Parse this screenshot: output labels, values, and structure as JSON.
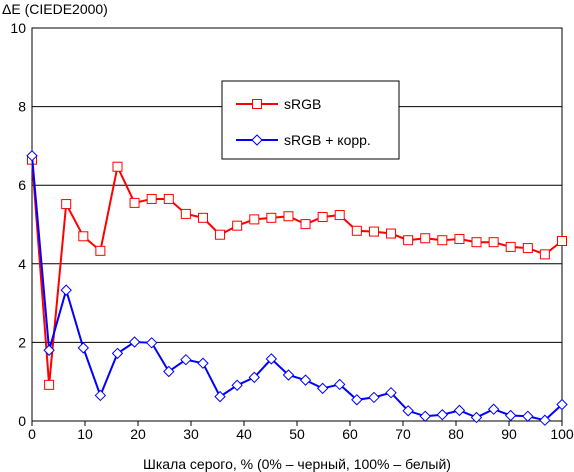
{
  "chart_data": {
    "type": "line",
    "title": "",
    "ylabel": "ΔE (CIEDE2000)",
    "xlabel": "Шкала серого, % (0% – черный, 100% – белый)",
    "xlim": [
      0,
      100
    ],
    "ylim": [
      0,
      10
    ],
    "xticks": [
      "0",
      "10",
      "20",
      "30",
      "40",
      "50",
      "60",
      "70",
      "80",
      "90",
      "100"
    ],
    "yticks": [
      "0",
      "2",
      "4",
      "6",
      "8",
      "10"
    ],
    "grid": "horizontal",
    "legend_position": "upper-middle",
    "series": [
      {
        "name": "sRGB",
        "color": "#ff0000",
        "marker": "square",
        "x": [
          0,
          3.23,
          6.45,
          9.68,
          12.9,
          16.13,
          19.35,
          22.58,
          25.81,
          29.03,
          32.26,
          35.48,
          38.71,
          41.94,
          45.16,
          48.39,
          51.61,
          54.84,
          58.06,
          61.29,
          64.52,
          67.74,
          70.97,
          74.19,
          77.42,
          80.65,
          83.87,
          87.1,
          90.32,
          93.55,
          96.77,
          100
        ],
        "y": [
          6.65,
          0.92,
          5.52,
          4.7,
          4.33,
          6.47,
          5.55,
          5.65,
          5.65,
          5.27,
          5.17,
          4.74,
          4.97,
          5.13,
          5.17,
          5.21,
          5.01,
          5.19,
          5.24,
          4.84,
          4.82,
          4.77,
          4.6,
          4.65,
          4.6,
          4.63,
          4.55,
          4.55,
          4.43,
          4.4,
          4.24,
          4.58
        ]
      },
      {
        "name": "sRGB + корр.",
        "color": "#0000ff",
        "marker": "diamond",
        "x": [
          0,
          3.23,
          6.45,
          9.68,
          12.9,
          16.13,
          19.35,
          22.58,
          25.81,
          29.03,
          32.26,
          35.48,
          38.71,
          41.94,
          45.16,
          48.39,
          51.61,
          54.84,
          58.06,
          61.29,
          64.52,
          67.74,
          70.97,
          74.19,
          77.42,
          80.65,
          83.87,
          87.1,
          90.32,
          93.55,
          96.77,
          100
        ],
        "y": [
          6.75,
          1.8,
          3.33,
          1.86,
          0.65,
          1.72,
          2.01,
          1.99,
          1.26,
          1.56,
          1.47,
          0.62,
          0.91,
          1.11,
          1.58,
          1.17,
          1.04,
          0.83,
          0.93,
          0.54,
          0.6,
          0.72,
          0.26,
          0.12,
          0.16,
          0.27,
          0.09,
          0.3,
          0.14,
          0.12,
          0.02,
          0.42
        ]
      }
    ]
  }
}
